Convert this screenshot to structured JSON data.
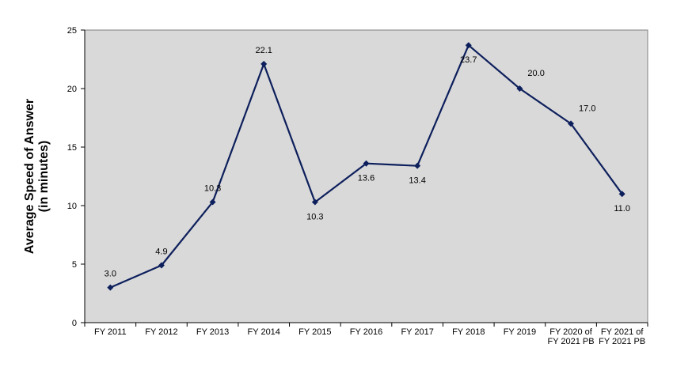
{
  "chart_data": {
    "type": "line",
    "title": "",
    "xlabel": "",
    "ylabel": [
      "Average Speed of Answer",
      "(in minutes)"
    ],
    "ylim": [
      0,
      25
    ],
    "yticks": [
      0,
      5,
      10,
      15,
      20,
      25
    ],
    "grid": false,
    "legend": "none",
    "categories": [
      [
        "FY 2011"
      ],
      [
        "FY 2012"
      ],
      [
        "FY 2013"
      ],
      [
        "FY 2014"
      ],
      [
        "FY 2015"
      ],
      [
        "FY 2016"
      ],
      [
        "FY 2017"
      ],
      [
        "FY 2018"
      ],
      [
        "FY 2019"
      ],
      [
        "FY 2020 of",
        "FY 2021 PB"
      ],
      [
        "FY 2021 of",
        "FY 2021 PB"
      ]
    ],
    "series": [
      {
        "values": [
          3.0,
          4.9,
          10.3,
          22.1,
          10.3,
          13.6,
          13.4,
          23.7,
          20.0,
          17.0,
          11.0
        ],
        "data_labels": [
          "3.0",
          "4.9",
          "10.3",
          "22.1",
          "10.3",
          "13.6",
          "13.4",
          "23.7",
          "20.0",
          "17.0",
          "11.0"
        ],
        "label_positions": [
          "above",
          "above",
          "above",
          "above",
          "below",
          "below",
          "below",
          "below",
          "above-right",
          "above-right",
          "below"
        ],
        "color": "#0d1f5c"
      }
    ],
    "colors": {
      "plot_background": "#d9d9d9",
      "axis": "#000000"
    }
  }
}
